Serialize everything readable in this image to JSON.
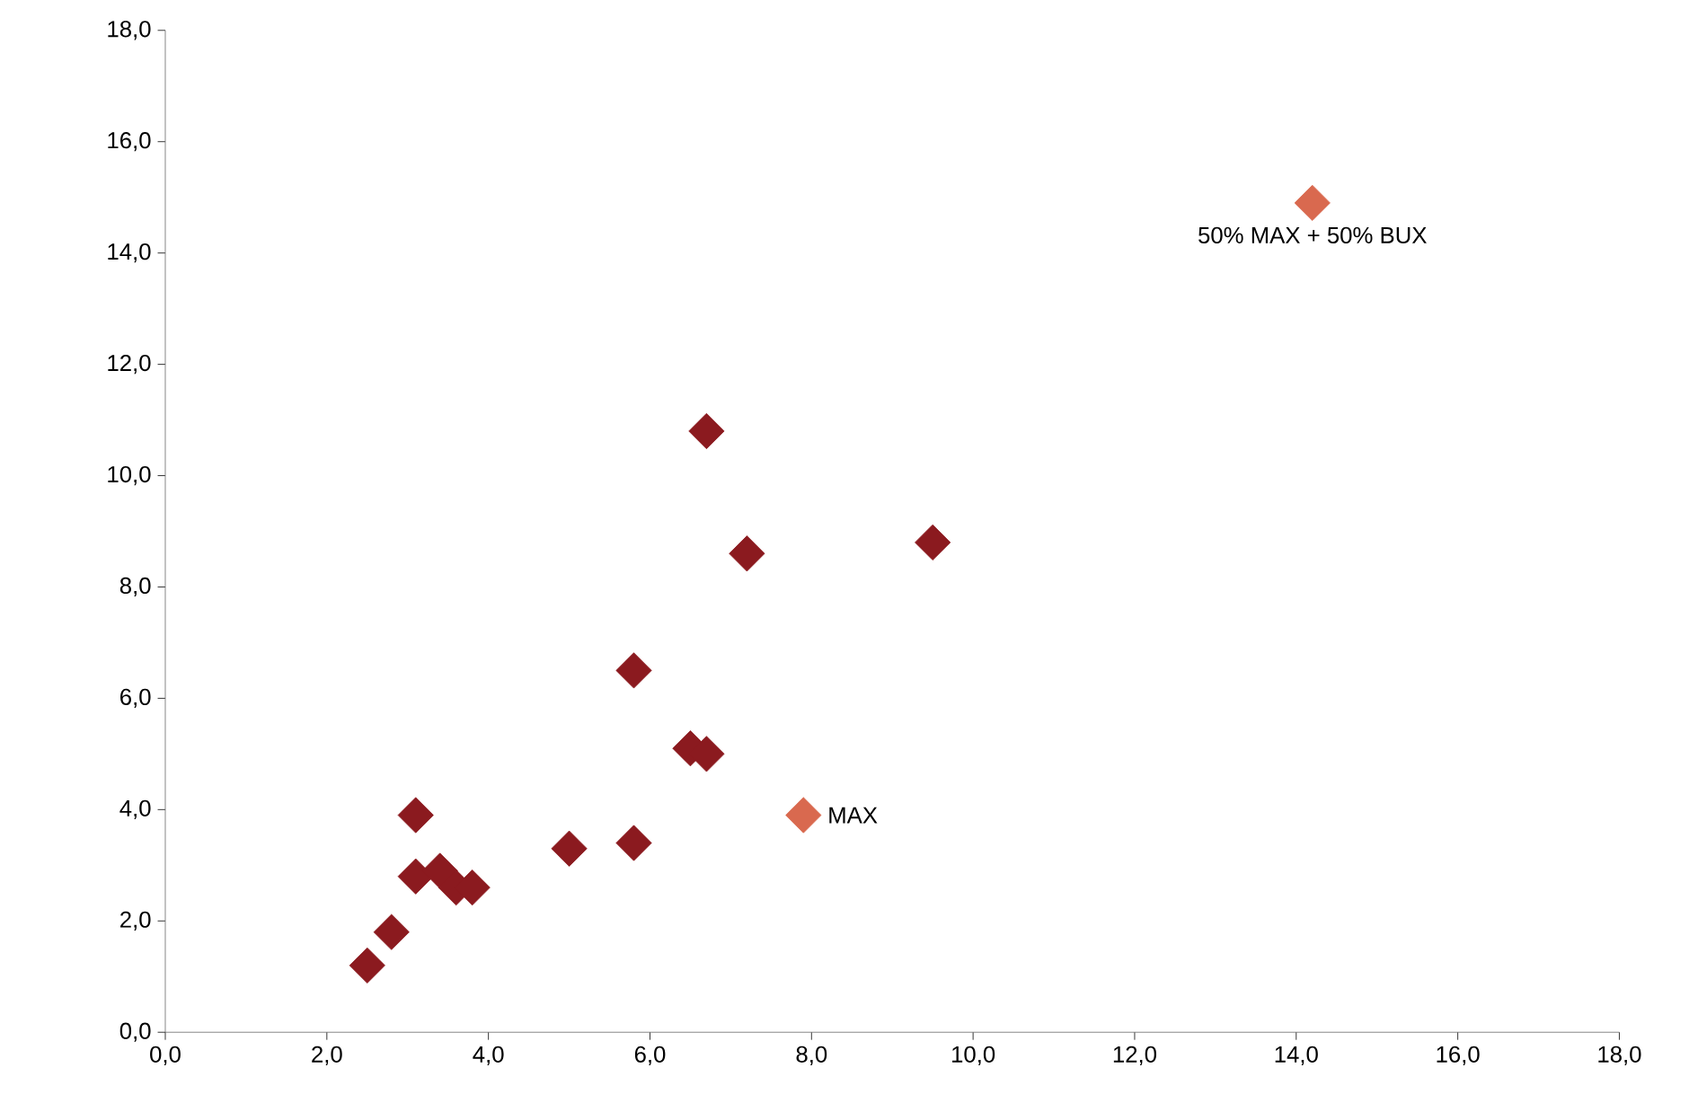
{
  "chart_data": {
    "type": "scatter",
    "marker": "diamond",
    "grid": false,
    "xlim": [
      0,
      18
    ],
    "ylim": [
      0,
      18
    ],
    "xticks": [
      {
        "value": 0,
        "label": "0,0"
      },
      {
        "value": 2,
        "label": "2,0"
      },
      {
        "value": 4,
        "label": "4,0"
      },
      {
        "value": 6,
        "label": "6,0"
      },
      {
        "value": 8,
        "label": "8,0"
      },
      {
        "value": 10,
        "label": "10,0"
      },
      {
        "value": 12,
        "label": "12,0"
      },
      {
        "value": 14,
        "label": "14,0"
      },
      {
        "value": 16,
        "label": "16,0"
      },
      {
        "value": 18,
        "label": "18,0"
      }
    ],
    "yticks": [
      {
        "value": 0,
        "label": "0,0"
      },
      {
        "value": 2,
        "label": "2,0"
      },
      {
        "value": 4,
        "label": "4,0"
      },
      {
        "value": 6,
        "label": "6,0"
      },
      {
        "value": 8,
        "label": "8,0"
      },
      {
        "value": 10,
        "label": "10,0"
      },
      {
        "value": 12,
        "label": "12,0"
      },
      {
        "value": 14,
        "label": "14,0"
      },
      {
        "value": 16,
        "label": "16,0"
      },
      {
        "value": 18,
        "label": "18,0"
      }
    ],
    "series": [
      {
        "color": "#8b1a1f",
        "x": [
          2.5,
          2.8,
          3.1,
          3.1,
          3.4,
          3.6,
          3.8,
          5.0,
          5.8,
          5.8,
          6.5,
          6.7,
          6.7,
          7.2,
          9.5
        ],
        "values": [
          1.2,
          1.8,
          3.9,
          2.8,
          2.9,
          2.6,
          2.6,
          3.3,
          3.4,
          6.5,
          5.1,
          5.0,
          10.8,
          8.6,
          8.8
        ]
      },
      {
        "color": "#d9694f",
        "x": [
          7.9,
          14.2
        ],
        "values": [
          3.9,
          14.9
        ]
      }
    ],
    "annotations": [
      {
        "text": "MAX",
        "x": 7.9,
        "y": 3.9
      },
      {
        "text": "50% MAX + 50% BUX",
        "x": 14.2,
        "y": 14.9
      }
    ]
  }
}
